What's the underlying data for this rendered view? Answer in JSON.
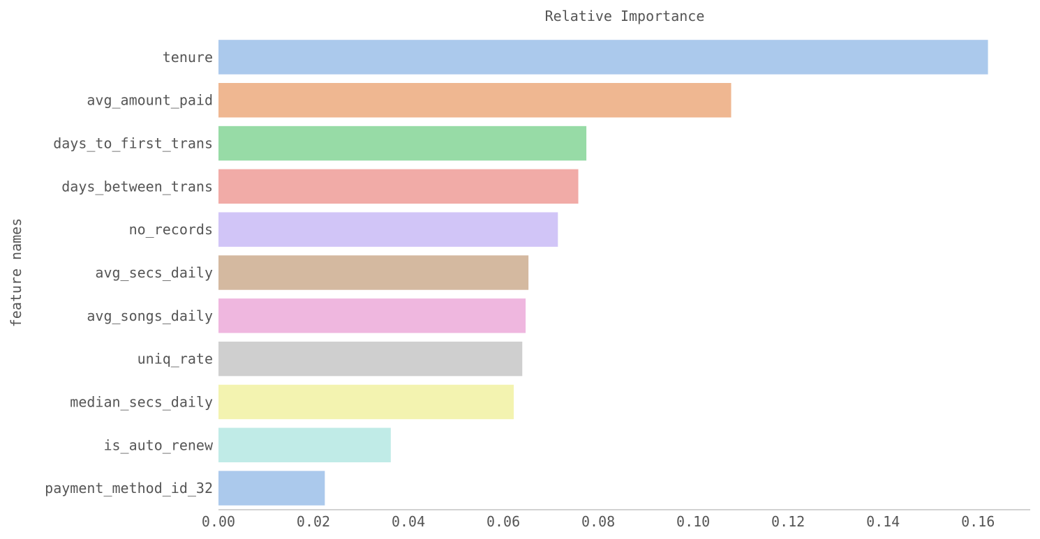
{
  "chart_data": {
    "type": "bar",
    "orientation": "horizontal",
    "title": "Relative Importance",
    "xlabel": "",
    "ylabel": "feature names",
    "xlim": [
      0.0,
      0.171
    ],
    "grid": false,
    "legend": "none",
    "x_ticks": [
      "0.00",
      "0.02",
      "0.04",
      "0.06",
      "0.08",
      "0.10",
      "0.12",
      "0.14",
      "0.16"
    ],
    "categories": [
      "tenure",
      "avg_amount_paid",
      "days_to_first_trans",
      "days_between_trans",
      "no_records",
      "avg_secs_daily",
      "avg_songs_daily",
      "uniq_rate",
      "median_secs_daily",
      "is_auto_renew",
      "payment_method_id_32"
    ],
    "values": [
      0.1621,
      0.108,
      0.0775,
      0.0758,
      0.0715,
      0.0653,
      0.0647,
      0.064,
      0.0622,
      0.0363,
      0.0224
    ],
    "colors": [
      "#abc9ec",
      "#efb791",
      "#97dba6",
      "#f1aba7",
      "#d1c5f7",
      "#d4b9a0",
      "#efb7df",
      "#cfcfcf",
      "#f3f3b0",
      "#c0ebe7",
      "#abc9ec"
    ]
  }
}
